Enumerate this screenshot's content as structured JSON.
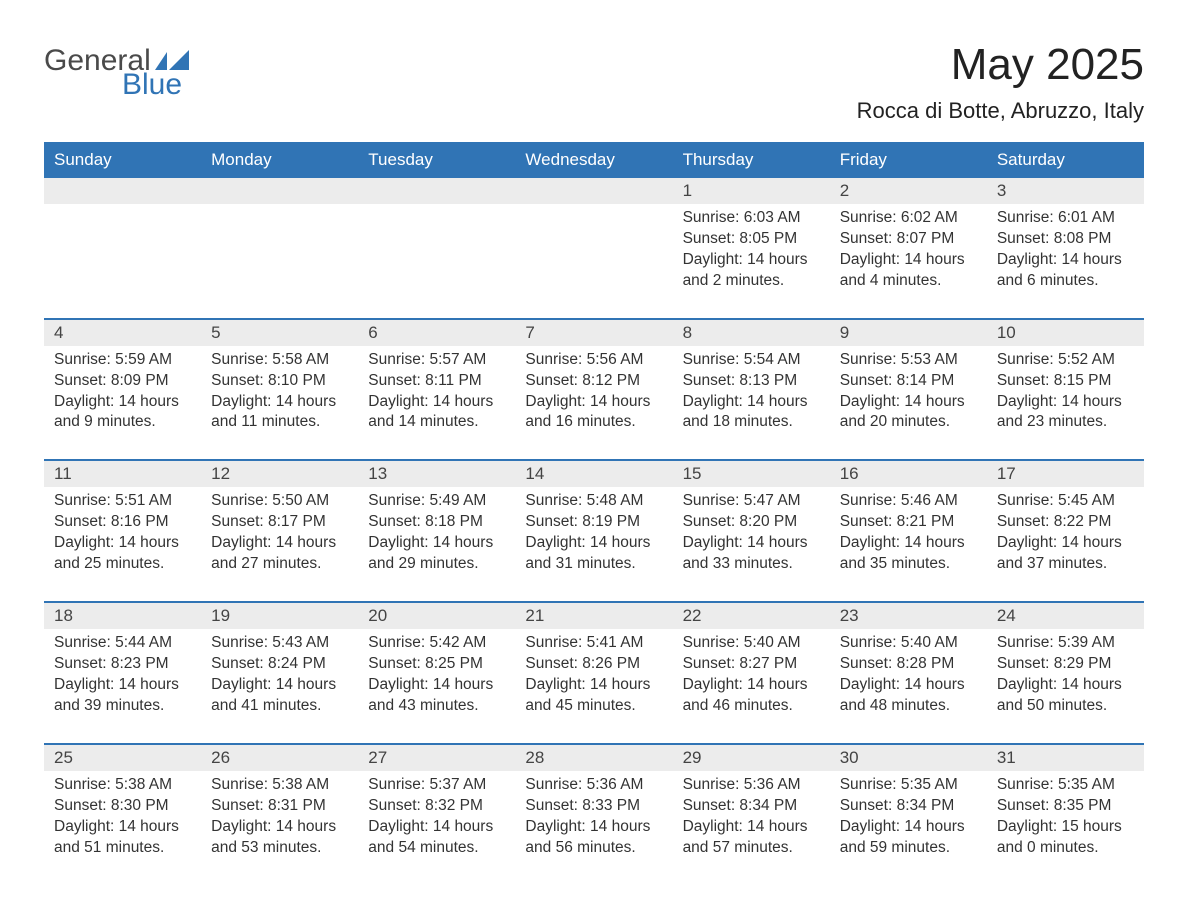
{
  "brand": {
    "word1": "General",
    "word2": "Blue",
    "text_color_general": "#4a4a4a",
    "text_color_blue": "#3074b5",
    "shape_color": "#3074b5"
  },
  "header": {
    "month_title": "May 2025",
    "location": "Rocca di Botte, Abruzzo, Italy",
    "title_color": "#222222"
  },
  "calendar": {
    "header_bg": "#3074b5",
    "header_fg": "#ffffff",
    "week_border_color": "#3074b5",
    "daynum_bg": "#ececec",
    "text_color": "#333333",
    "day_names": [
      "Sunday",
      "Monday",
      "Tuesday",
      "Wednesday",
      "Thursday",
      "Friday",
      "Saturday"
    ],
    "weeks": [
      [
        {
          "empty": true
        },
        {
          "empty": true
        },
        {
          "empty": true
        },
        {
          "empty": true
        },
        {
          "n": "1",
          "sunrise": "Sunrise: 6:03 AM",
          "sunset": "Sunset: 8:05 PM",
          "day1": "Daylight: 14 hours",
          "day2": "and 2 minutes."
        },
        {
          "n": "2",
          "sunrise": "Sunrise: 6:02 AM",
          "sunset": "Sunset: 8:07 PM",
          "day1": "Daylight: 14 hours",
          "day2": "and 4 minutes."
        },
        {
          "n": "3",
          "sunrise": "Sunrise: 6:01 AM",
          "sunset": "Sunset: 8:08 PM",
          "day1": "Daylight: 14 hours",
          "day2": "and 6 minutes."
        }
      ],
      [
        {
          "n": "4",
          "sunrise": "Sunrise: 5:59 AM",
          "sunset": "Sunset: 8:09 PM",
          "day1": "Daylight: 14 hours",
          "day2": "and 9 minutes."
        },
        {
          "n": "5",
          "sunrise": "Sunrise: 5:58 AM",
          "sunset": "Sunset: 8:10 PM",
          "day1": "Daylight: 14 hours",
          "day2": "and 11 minutes."
        },
        {
          "n": "6",
          "sunrise": "Sunrise: 5:57 AM",
          "sunset": "Sunset: 8:11 PM",
          "day1": "Daylight: 14 hours",
          "day2": "and 14 minutes."
        },
        {
          "n": "7",
          "sunrise": "Sunrise: 5:56 AM",
          "sunset": "Sunset: 8:12 PM",
          "day1": "Daylight: 14 hours",
          "day2": "and 16 minutes."
        },
        {
          "n": "8",
          "sunrise": "Sunrise: 5:54 AM",
          "sunset": "Sunset: 8:13 PM",
          "day1": "Daylight: 14 hours",
          "day2": "and 18 minutes."
        },
        {
          "n": "9",
          "sunrise": "Sunrise: 5:53 AM",
          "sunset": "Sunset: 8:14 PM",
          "day1": "Daylight: 14 hours",
          "day2": "and 20 minutes."
        },
        {
          "n": "10",
          "sunrise": "Sunrise: 5:52 AM",
          "sunset": "Sunset: 8:15 PM",
          "day1": "Daylight: 14 hours",
          "day2": "and 23 minutes."
        }
      ],
      [
        {
          "n": "11",
          "sunrise": "Sunrise: 5:51 AM",
          "sunset": "Sunset: 8:16 PM",
          "day1": "Daylight: 14 hours",
          "day2": "and 25 minutes."
        },
        {
          "n": "12",
          "sunrise": "Sunrise: 5:50 AM",
          "sunset": "Sunset: 8:17 PM",
          "day1": "Daylight: 14 hours",
          "day2": "and 27 minutes."
        },
        {
          "n": "13",
          "sunrise": "Sunrise: 5:49 AM",
          "sunset": "Sunset: 8:18 PM",
          "day1": "Daylight: 14 hours",
          "day2": "and 29 minutes."
        },
        {
          "n": "14",
          "sunrise": "Sunrise: 5:48 AM",
          "sunset": "Sunset: 8:19 PM",
          "day1": "Daylight: 14 hours",
          "day2": "and 31 minutes."
        },
        {
          "n": "15",
          "sunrise": "Sunrise: 5:47 AM",
          "sunset": "Sunset: 8:20 PM",
          "day1": "Daylight: 14 hours",
          "day2": "and 33 minutes."
        },
        {
          "n": "16",
          "sunrise": "Sunrise: 5:46 AM",
          "sunset": "Sunset: 8:21 PM",
          "day1": "Daylight: 14 hours",
          "day2": "and 35 minutes."
        },
        {
          "n": "17",
          "sunrise": "Sunrise: 5:45 AM",
          "sunset": "Sunset: 8:22 PM",
          "day1": "Daylight: 14 hours",
          "day2": "and 37 minutes."
        }
      ],
      [
        {
          "n": "18",
          "sunrise": "Sunrise: 5:44 AM",
          "sunset": "Sunset: 8:23 PM",
          "day1": "Daylight: 14 hours",
          "day2": "and 39 minutes."
        },
        {
          "n": "19",
          "sunrise": "Sunrise: 5:43 AM",
          "sunset": "Sunset: 8:24 PM",
          "day1": "Daylight: 14 hours",
          "day2": "and 41 minutes."
        },
        {
          "n": "20",
          "sunrise": "Sunrise: 5:42 AM",
          "sunset": "Sunset: 8:25 PM",
          "day1": "Daylight: 14 hours",
          "day2": "and 43 minutes."
        },
        {
          "n": "21",
          "sunrise": "Sunrise: 5:41 AM",
          "sunset": "Sunset: 8:26 PM",
          "day1": "Daylight: 14 hours",
          "day2": "and 45 minutes."
        },
        {
          "n": "22",
          "sunrise": "Sunrise: 5:40 AM",
          "sunset": "Sunset: 8:27 PM",
          "day1": "Daylight: 14 hours",
          "day2": "and 46 minutes."
        },
        {
          "n": "23",
          "sunrise": "Sunrise: 5:40 AM",
          "sunset": "Sunset: 8:28 PM",
          "day1": "Daylight: 14 hours",
          "day2": "and 48 minutes."
        },
        {
          "n": "24",
          "sunrise": "Sunrise: 5:39 AM",
          "sunset": "Sunset: 8:29 PM",
          "day1": "Daylight: 14 hours",
          "day2": "and 50 minutes."
        }
      ],
      [
        {
          "n": "25",
          "sunrise": "Sunrise: 5:38 AM",
          "sunset": "Sunset: 8:30 PM",
          "day1": "Daylight: 14 hours",
          "day2": "and 51 minutes."
        },
        {
          "n": "26",
          "sunrise": "Sunrise: 5:38 AM",
          "sunset": "Sunset: 8:31 PM",
          "day1": "Daylight: 14 hours",
          "day2": "and 53 minutes."
        },
        {
          "n": "27",
          "sunrise": "Sunrise: 5:37 AM",
          "sunset": "Sunset: 8:32 PM",
          "day1": "Daylight: 14 hours",
          "day2": "and 54 minutes."
        },
        {
          "n": "28",
          "sunrise": "Sunrise: 5:36 AM",
          "sunset": "Sunset: 8:33 PM",
          "day1": "Daylight: 14 hours",
          "day2": "and 56 minutes."
        },
        {
          "n": "29",
          "sunrise": "Sunrise: 5:36 AM",
          "sunset": "Sunset: 8:34 PM",
          "day1": "Daylight: 14 hours",
          "day2": "and 57 minutes."
        },
        {
          "n": "30",
          "sunrise": "Sunrise: 5:35 AM",
          "sunset": "Sunset: 8:34 PM",
          "day1": "Daylight: 14 hours",
          "day2": "and 59 minutes."
        },
        {
          "n": "31",
          "sunrise": "Sunrise: 5:35 AM",
          "sunset": "Sunset: 8:35 PM",
          "day1": "Daylight: 15 hours",
          "day2": "and 0 minutes."
        }
      ]
    ]
  }
}
